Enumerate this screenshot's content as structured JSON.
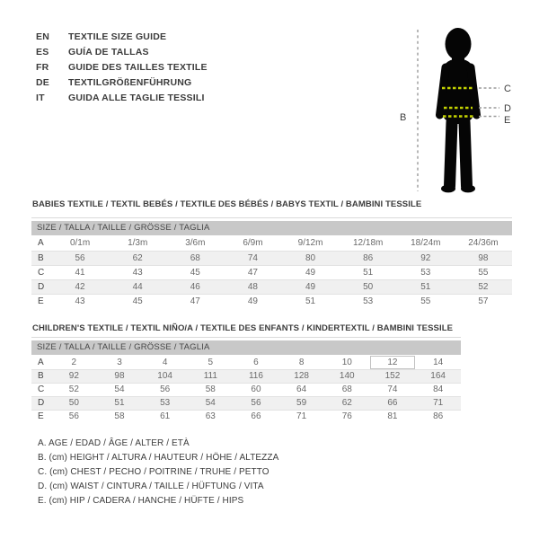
{
  "languages": [
    {
      "code": "EN",
      "label": "TEXTILE SIZE GUIDE"
    },
    {
      "code": "ES",
      "label": "GUÍA DE TALLAS"
    },
    {
      "code": "FR",
      "label": "GUIDE DES TAILLES TEXTILE"
    },
    {
      "code": "DE",
      "label": "TEXTILGRÖßENFÜHRUNG"
    },
    {
      "code": "IT",
      "label": "GUIDA ALLE TAGLIE TESSILI"
    }
  ],
  "figure": {
    "labels": {
      "height": "B",
      "chest": "C",
      "waist": "D",
      "hip": "E"
    }
  },
  "colors": {
    "header_bar": "#c8c8c8",
    "stripe": "#f0f0f0",
    "accent_dash": "#c3d200",
    "dash_gray": "#9b9b9b",
    "text_dark": "#3c3c3c",
    "silhouette": "#050505"
  },
  "babies_table": {
    "title": "BABIES TEXTILE / TEXTIL BEBÉS / TEXTILE DES BÉBÉS / BABYS TEXTIL / BAMBINI TESSILE",
    "size_header": "SIZE / TALLA / TAILLE / GRÖSSE / TAGLIA",
    "rows": [
      {
        "label": "A",
        "values": [
          "0/1m",
          "1/3m",
          "3/6m",
          "6/9m",
          "9/12m",
          "12/18m",
          "18/24m",
          "24/36m"
        ]
      },
      {
        "label": "B",
        "values": [
          "56",
          "62",
          "68",
          "74",
          "80",
          "86",
          "92",
          "98"
        ]
      },
      {
        "label": "C",
        "values": [
          "41",
          "43",
          "45",
          "47",
          "49",
          "51",
          "53",
          "55"
        ]
      },
      {
        "label": "D",
        "values": [
          "42",
          "44",
          "46",
          "48",
          "49",
          "50",
          "51",
          "52"
        ]
      },
      {
        "label": "E",
        "values": [
          "43",
          "45",
          "47",
          "49",
          "51",
          "53",
          "55",
          "57"
        ]
      }
    ]
  },
  "children_table": {
    "title": "CHILDREN'S TEXTILE / TEXTIL NIÑO/A / TEXTILE DES ENFANTS / KINDERTEXTIL / BAMBINI TESSILE",
    "size_header": "SIZE / TALLA / TAILLE / GRÖSSE / TAGLIA",
    "highlight": {
      "row_label": "A",
      "value": "12"
    },
    "rows": [
      {
        "label": "A",
        "values": [
          "2",
          "3",
          "4",
          "5",
          "6",
          "8",
          "10",
          "12",
          "14"
        ]
      },
      {
        "label": "B",
        "values": [
          "92",
          "98",
          "104",
          "111",
          "116",
          "128",
          "140",
          "152",
          "164"
        ]
      },
      {
        "label": "C",
        "values": [
          "52",
          "54",
          "56",
          "58",
          "60",
          "64",
          "68",
          "74",
          "84"
        ]
      },
      {
        "label": "D",
        "values": [
          "50",
          "51",
          "53",
          "54",
          "56",
          "59",
          "62",
          "66",
          "71"
        ]
      },
      {
        "label": "E",
        "values": [
          "56",
          "58",
          "61",
          "63",
          "66",
          "71",
          "76",
          "81",
          "86"
        ]
      }
    ]
  },
  "legend": [
    "A. AGE / EDAD / ÂGE / ALTER / ETÀ",
    "B. (cm) HEIGHT / ALTURA / HAUTEUR / HÖHE / ALTEZZA",
    "C. (cm) CHEST / PECHO / POITRINE / TRUHE / PETTO",
    "D. (cm) WAIST / CINTURA / TAILLE / HÜFTUNG / VITA",
    "E. (cm) HIP / CADERA / HANCHE / HÜFTE / HIPS"
  ]
}
